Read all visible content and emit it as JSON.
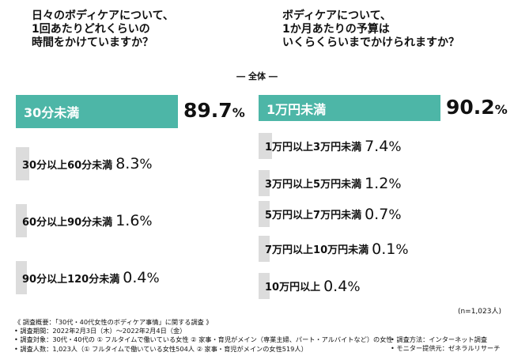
{
  "questions": {
    "left": "日々のボディケアについて、\n1回あたりどれくらいの\n時間をかけていますか？",
    "right": "ボディケアについて、\n1か月あたりの予算は\nいくらくらいまでかけられますか？"
  },
  "subtitle": "― 全体 ―",
  "percent_unit": "%",
  "chart_data": [
    {
      "type": "bar",
      "orientation": "horizontal",
      "categories": [
        "30分未満",
        "30分以上60分未満",
        "60分以上90分未満",
        "90分以上120分未満"
      ],
      "values": [
        89.7,
        8.3,
        1.6,
        0.4
      ],
      "value_labels": [
        "89.7",
        "8.3",
        "1.6",
        "0.4"
      ],
      "xlim": [
        0,
        100
      ],
      "colors": {
        "lead": "#4db6a7",
        "other": "#dcdcdc"
      }
    },
    {
      "type": "bar",
      "orientation": "horizontal",
      "categories": [
        "1万円未満",
        "1万円以上3万円未満",
        "3万円以上5万円未満",
        "5万円以上7万円未満",
        "7万円以上10万円未満",
        "10万円以上"
      ],
      "values": [
        90.2,
        7.4,
        1.2,
        0.7,
        0.1,
        0.4
      ],
      "value_labels": [
        "90.2",
        "7.4",
        "1.2",
        "0.7",
        "0.1",
        "0.4"
      ],
      "xlim": [
        0,
        100
      ],
      "colors": {
        "lead": "#4db6a7",
        "other": "#dcdcdc"
      }
    }
  ],
  "n_note": "(n=1,023人)",
  "footer": {
    "left": [
      "《 調査概要：「30代・40代女性のボディケア事情」に関する調査 》",
      "• 調査期間：2022年2月3日（木）〜2022年2月4日（金）",
      "• 調査対象：30代・40代の ① フルタイムで働いている女性 ② 家事・育児がメイン（専業主婦、パート・アルバイトなど）の女性",
      "• 調査人数：1,023人（① フルタイムで働いている女性504人 ② 家事・育児がメインの女性519人）"
    ],
    "right": [
      "• 調査方法：インターネット調査",
      "• モニター提供元：ゼネラルリサーチ"
    ]
  }
}
